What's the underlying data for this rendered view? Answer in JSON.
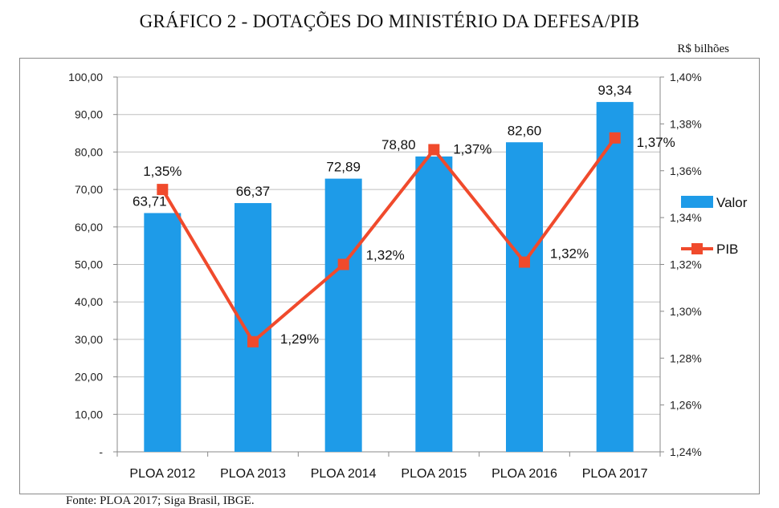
{
  "title": "GRÁFICO 2 - DOTAÇÕES DO MINISTÉRIO DA DEFESA/PIB",
  "unit_label": "R$ bilhões",
  "source": "Fonte: PLOA 2017; Siga Brasil, IBGE.",
  "chart_data": {
    "type": "bar",
    "title": "GRÁFICO 2 - DOTAÇÕES DO MINISTÉRIO DA DEFESA/PIB",
    "categories": [
      "PLOA 2012",
      "PLOA 2013",
      "PLOA 2014",
      "PLOA 2015",
      "PLOA 2016",
      "PLOA 2017"
    ],
    "series": [
      {
        "name": "Valor",
        "type": "bar",
        "axis": "left",
        "color": "#1e9be8",
        "values": [
          63.71,
          66.37,
          72.89,
          78.8,
          82.6,
          93.34
        ],
        "labels": [
          "63,71",
          "66,37",
          "72,89",
          "78,80",
          "82,60",
          "93,34"
        ]
      },
      {
        "name": "PIB",
        "type": "line",
        "axis": "right",
        "color": "#f04a2c",
        "values": [
          1.352,
          1.287,
          1.32,
          1.369,
          1.321,
          1.374
        ],
        "labels": [
          "1,35%",
          "1,29%",
          "1,32%",
          "1,37%",
          "1,32%",
          "1,37%"
        ]
      }
    ],
    "y_left": {
      "min": 0,
      "max": 100,
      "ticks": [
        "-",
        "10,00",
        "20,00",
        "30,00",
        "40,00",
        "50,00",
        "60,00",
        "70,00",
        "80,00",
        "90,00",
        "100,00"
      ]
    },
    "y_right": {
      "min": 1.24,
      "max": 1.4,
      "ticks": [
        "1,24%",
        "1,26%",
        "1,28%",
        "1,30%",
        "1,32%",
        "1,34%",
        "1,36%",
        "1,38%",
        "1,40%"
      ]
    },
    "grid": true,
    "legend": "right"
  }
}
